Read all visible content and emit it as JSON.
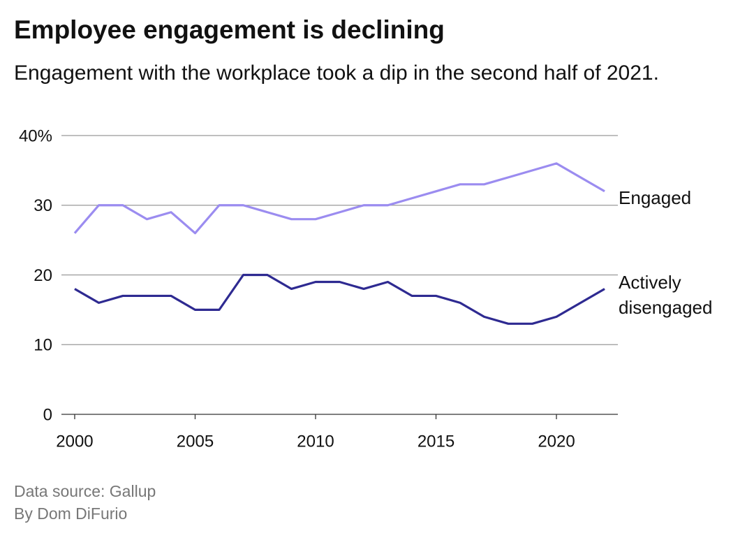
{
  "chart_data": {
    "type": "line",
    "title": "Employee engagement is declining",
    "subtitle": "Engagement with the workplace took a dip in the second half of 2021.",
    "source": "Data source: Gallup",
    "byline": "By Dom DiFurio",
    "x": [
      2000,
      2001,
      2002,
      2003,
      2004,
      2005,
      2006,
      2007,
      2008,
      2009,
      2010,
      2011,
      2012,
      2013,
      2014,
      2015,
      2016,
      2017,
      2018,
      2019,
      2020,
      2022
    ],
    "series": [
      {
        "name": "Engaged",
        "color": "#9b8cf0",
        "values": [
          26,
          30,
          30,
          28,
          29,
          26,
          30,
          30,
          29,
          28,
          28,
          29,
          30,
          30,
          31,
          32,
          33,
          33,
          34,
          35,
          36,
          32
        ]
      },
      {
        "name": "Actively disengaged",
        "color": "#2e2a91",
        "values": [
          18,
          16,
          17,
          17,
          17,
          15,
          15,
          20,
          20,
          18,
          19,
          19,
          18,
          19,
          17,
          17,
          16,
          14,
          13,
          13,
          14,
          18
        ]
      }
    ],
    "xlim": [
      1999.45,
      2022.55
    ],
    "xticks": [
      2000,
      2005,
      2010,
      2015,
      2020
    ],
    "ylim": [
      0,
      40
    ],
    "yticks": [
      0,
      10,
      20,
      30,
      {
        "value": 40,
        "label": "40%"
      }
    ],
    "grid": true
  }
}
